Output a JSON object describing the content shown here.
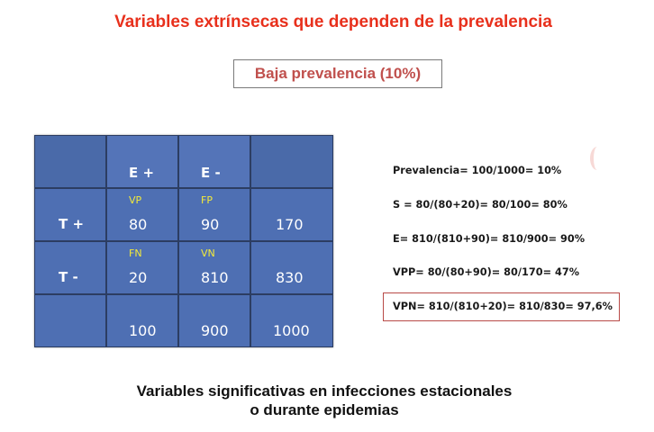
{
  "slide": {
    "title": "Variables extrínsecas que dependen de la prevalencia",
    "subtitle": "Baja prevalencia (10%)",
    "table": {
      "col_headers": [
        "",
        "E +",
        "E -",
        ""
      ],
      "rows": [
        {
          "label": "T +",
          "cells": [
            {
              "tag": "VP",
              "value": "80"
            },
            {
              "tag": "FP",
              "value": "90"
            },
            {
              "tag": "",
              "value": "170"
            }
          ]
        },
        {
          "label": "T -",
          "cells": [
            {
              "tag": "FN",
              "value": "20"
            },
            {
              "tag": "VN",
              "value": "810"
            },
            {
              "tag": "",
              "value": "830"
            }
          ]
        },
        {
          "label": "",
          "cells": [
            {
              "tag": "",
              "value": "100"
            },
            {
              "tag": "",
              "value": "900"
            },
            {
              "tag": "",
              "value": "1000"
            }
          ]
        }
      ]
    },
    "formulas": {
      "prevalence": "Prevalencia= 100/1000= 10%",
      "sensitivity": "S = 80/(80+20)= 80/100= 80%",
      "specificity": "E=  810/(810+90)= 810/900= 90%",
      "vpp": "VPP= 80/(80+90)= 80/170= 47%",
      "vpn": "VPN= 810/(810+20)= 810/830= 97,6%"
    },
    "footer": {
      "line1": "Variables significativas en infecciones estacionales",
      "line2": "o durante epidemias"
    },
    "colors": {
      "title": "#e8301c",
      "subtitle": "#c0504d",
      "table_cell": "#4e6fb3",
      "tag": "#f3ea3a"
    }
  }
}
